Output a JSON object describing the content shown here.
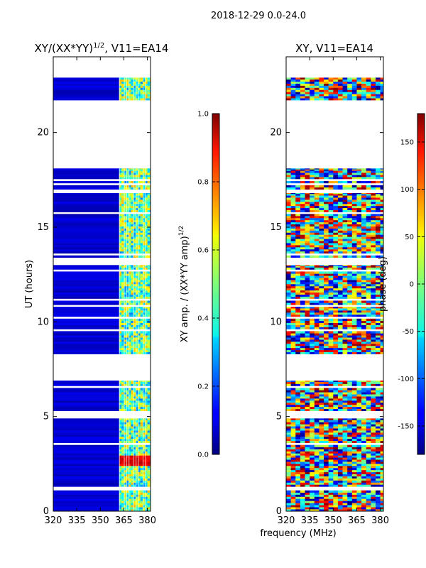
{
  "suptitle": "2018-12-29 0.0-24.0",
  "chart_data": [
    {
      "type": "heatmap",
      "title": "XY/(XX*YY)^{1/2}, V11=EA14",
      "title_main": "XY/(XX*YY)",
      "title_exp": "1/2",
      "title_tail": ", V11=EA14",
      "xlabel": "",
      "ylabel": "UT (hours)",
      "xlim": [
        320,
        382
      ],
      "ylim": [
        0,
        24
      ],
      "xticks": [
        320,
        335,
        350,
        365,
        380
      ],
      "yticks": [
        0,
        5,
        10,
        15,
        20
      ],
      "colorbar": {
        "label": "XY amp. / (XX*YY amp)^{1/2}",
        "label_main": "XY amp. / (XX*YY amp)",
        "label_exp": "1/2",
        "range": [
          0.0,
          1.0
        ],
        "ticks": [
          "0.0",
          "0.2",
          "0.4",
          "0.6",
          "0.8",
          "1.0"
        ],
        "colormap": "jet"
      },
      "data_ut_blocks_hours": [
        [
          0.0,
          1.1
        ],
        [
          1.3,
          4.9
        ],
        [
          5.3,
          6.9
        ],
        [
          8.3,
          10.8
        ],
        [
          10.9,
          13.0
        ],
        [
          13.4,
          15.7
        ],
        [
          15.8,
          16.8
        ],
        [
          17.0,
          18.1
        ],
        [
          21.6,
          22.9
        ]
      ],
      "mean_amplitude": {
        "320-362 MHz": 0.05,
        "362-382 MHz": 0.45,
        "RFI spike near 2.6 UT": 0.95
      }
    },
    {
      "type": "heatmap",
      "title": "XY, V11=EA14",
      "xlabel": "frequency (MHz)",
      "ylabel": "",
      "xlim": [
        320,
        382
      ],
      "ylim": [
        0,
        24
      ],
      "xticks": [
        320,
        335,
        350,
        365,
        380
      ],
      "yticks": [
        0,
        5,
        10,
        15,
        20
      ],
      "colorbar": {
        "label": "phase (deg)",
        "range": [
          -180,
          180
        ],
        "ticks": [
          "-150",
          "-100",
          "-50",
          "0",
          "50",
          "100",
          "150"
        ],
        "colormap": "jet"
      },
      "data_ut_blocks_hours": [
        [
          0.0,
          1.1
        ],
        [
          1.3,
          4.9
        ],
        [
          5.3,
          6.9
        ],
        [
          8.3,
          10.8
        ],
        [
          10.9,
          13.0
        ],
        [
          13.4,
          15.7
        ],
        [
          15.8,
          16.8
        ],
        [
          17.0,
          18.1
        ],
        [
          21.6,
          22.9
        ]
      ],
      "phase_character": "random phase across band"
    }
  ]
}
